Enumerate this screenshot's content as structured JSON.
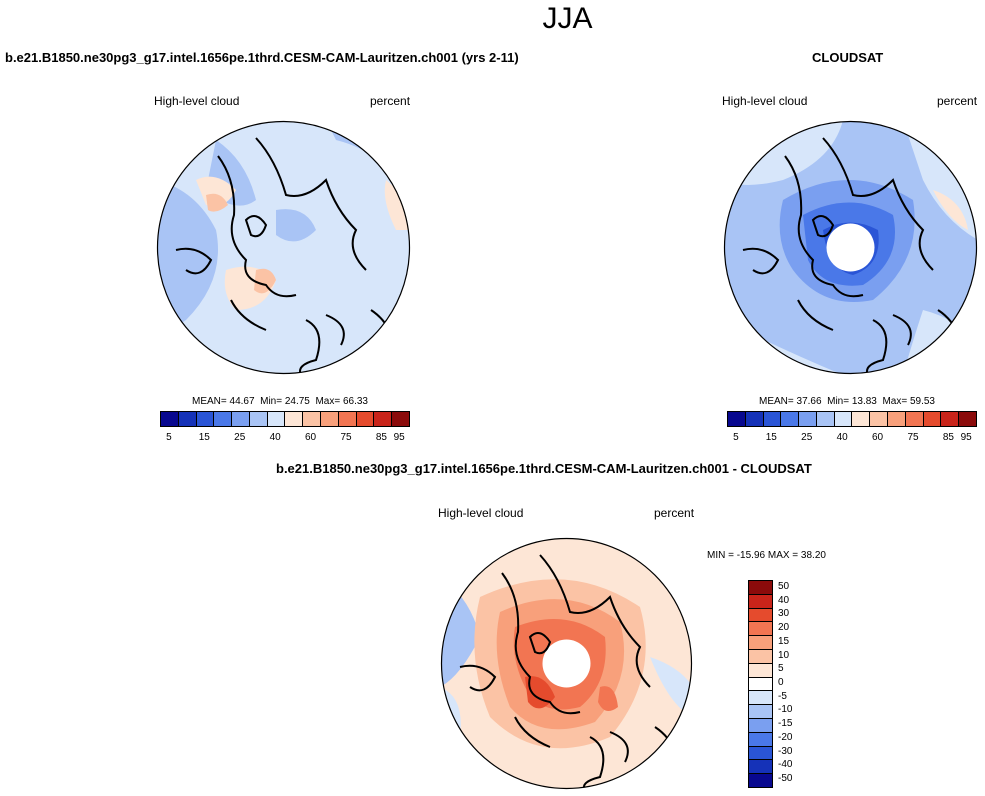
{
  "season": "JJA",
  "panels": [
    {
      "id": "model",
      "title": "b.e21.B1850.ne30pg3_g17.intel.1656pe.1thrd.CESM-CAM-Lauritzen.ch001 (yrs 2-11)",
      "left_label": "High-level cloud",
      "right_label": "percent",
      "stats": {
        "mean_label": "MEAN=",
        "mean": "44.67",
        "min_label": "Min=",
        "min": "24.75",
        "max_label": "Max=",
        "max": "66.33"
      }
    },
    {
      "id": "obs",
      "title": "CLOUDSAT",
      "left_label": "High-level cloud",
      "right_label": "percent",
      "stats": {
        "mean_label": "MEAN=",
        "mean": "37.66",
        "min_label": "Min=",
        "min": "13.83",
        "max_label": "Max=",
        "max": "59.53"
      }
    },
    {
      "id": "diff",
      "title": "b.e21.B1850.ne30pg3_g17.intel.1656pe.1thrd.CESM-CAM-Lauritzen.ch001 - CLOUDSAT",
      "left_label": "High-level cloud",
      "right_label": "percent",
      "minmax": "MIN = -15.96 MAX =  38.20"
    }
  ],
  "colorbar_abs": {
    "colors": [
      "#08088f",
      "#1532b8",
      "#2a55d6",
      "#4a78e8",
      "#7a9ff0",
      "#a9c4f5",
      "#d7e6fa",
      "#fde6d6",
      "#fbc3a5",
      "#f8a07b",
      "#f27552",
      "#e54b2d",
      "#c9241a",
      "#8b0b0b"
    ],
    "tick_labels": [
      "5",
      "15",
      "25",
      "40",
      "60",
      "75",
      "85",
      "95"
    ]
  },
  "colorbar_diff": {
    "colors_top_to_bottom": [
      "#8b0b0b",
      "#c9241a",
      "#e54b2d",
      "#f27552",
      "#f8a07b",
      "#fbc3a5",
      "#fde6d6",
      "#ffffff",
      "#d7e6fa",
      "#a9c4f5",
      "#7a9ff0",
      "#4a78e8",
      "#2a55d6",
      "#1532b8",
      "#08088f"
    ],
    "tick_labels_top_to_bottom": [
      "50",
      "40",
      "30",
      "20",
      "15",
      "10",
      "5",
      "0",
      "-5",
      "-10",
      "-15",
      "-20",
      "-30",
      "-40",
      "-50"
    ]
  },
  "chart_data": [
    {
      "type": "heatmap",
      "title": "b.e21.B1850.ne30pg3_g17.intel.1656pe.1thrd.CESM-CAM-Lauritzen.ch001 (yrs 2-11)",
      "variable": "High-level cloud",
      "units": "percent",
      "projection": "north polar stereographic",
      "mean": 44.67,
      "min": 24.75,
      "max": 66.33,
      "levels": [
        5,
        10,
        15,
        20,
        25,
        30,
        40,
        50,
        60,
        70,
        75,
        80,
        85,
        90,
        95
      ]
    },
    {
      "type": "heatmap",
      "title": "CLOUDSAT",
      "variable": "High-level cloud",
      "units": "percent",
      "projection": "north polar stereographic",
      "mean": 37.66,
      "min": 13.83,
      "max": 59.53,
      "levels": [
        5,
        10,
        15,
        20,
        25,
        30,
        40,
        50,
        60,
        70,
        75,
        80,
        85,
        90,
        95
      ]
    },
    {
      "type": "heatmap",
      "title": "b.e21.B1850.ne30pg3_g17.intel.1656pe.1thrd.CESM-CAM-Lauritzen.ch001 - CLOUDSAT",
      "variable": "High-level cloud",
      "units": "percent",
      "projection": "north polar stereographic",
      "min": -15.96,
      "max": 38.2,
      "levels": [
        -50,
        -40,
        -30,
        -20,
        -15,
        -10,
        -5,
        0,
        5,
        10,
        15,
        20,
        30,
        40,
        50
      ]
    }
  ]
}
